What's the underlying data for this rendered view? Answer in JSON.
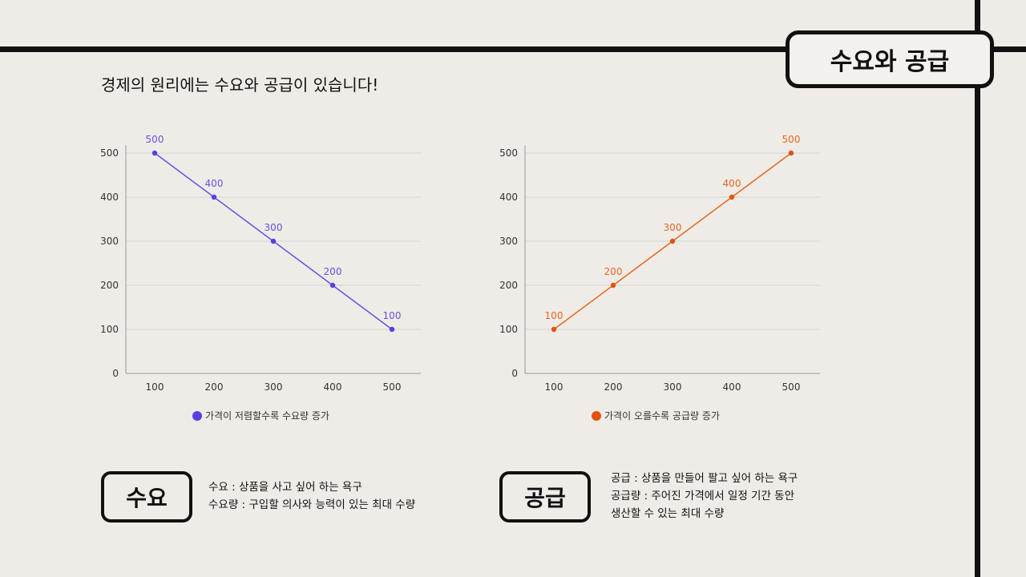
{
  "title": "수요와 공급",
  "headline": "경제의 원리에는 수요와 공급이 있습니다!",
  "chart_data": [
    {
      "type": "line",
      "x": [
        100,
        200,
        300,
        400,
        500
      ],
      "values": [
        500,
        400,
        300,
        200,
        100
      ],
      "yticks": [
        0,
        100,
        200,
        300,
        400,
        500
      ],
      "ylim": [
        0,
        500
      ],
      "grid": true,
      "legend": "가격이 저렴할수록 수요량 증가",
      "legend_placement": "bottom",
      "color": "#6a4fe0",
      "marker_color": "#5a3fe0"
    },
    {
      "type": "line",
      "x": [
        100,
        200,
        300,
        400,
        500
      ],
      "values": [
        100,
        200,
        300,
        400,
        500
      ],
      "yticks": [
        0,
        100,
        200,
        300,
        400,
        500
      ],
      "ylim": [
        0,
        500
      ],
      "grid": true,
      "legend": "가격이 오를수록 공급량 증가",
      "legend_placement": "bottom",
      "color": "#e8661e",
      "marker_color": "#e0540f"
    }
  ],
  "demand": {
    "tag": "수요",
    "lines": [
      "수요 : 상품을 사고 싶어 하는 욕구",
      "수요량 : 구입할 의사와 능력이 있는 최대 수량"
    ]
  },
  "supply": {
    "tag": "공급",
    "lines": [
      "공급 : 상품을 만들어 팔고 싶어 하는 욕구",
      "공급량 : 주어진 가격에서 일정 기간 동안",
      "생산할 수 있는 최대 수량"
    ]
  }
}
